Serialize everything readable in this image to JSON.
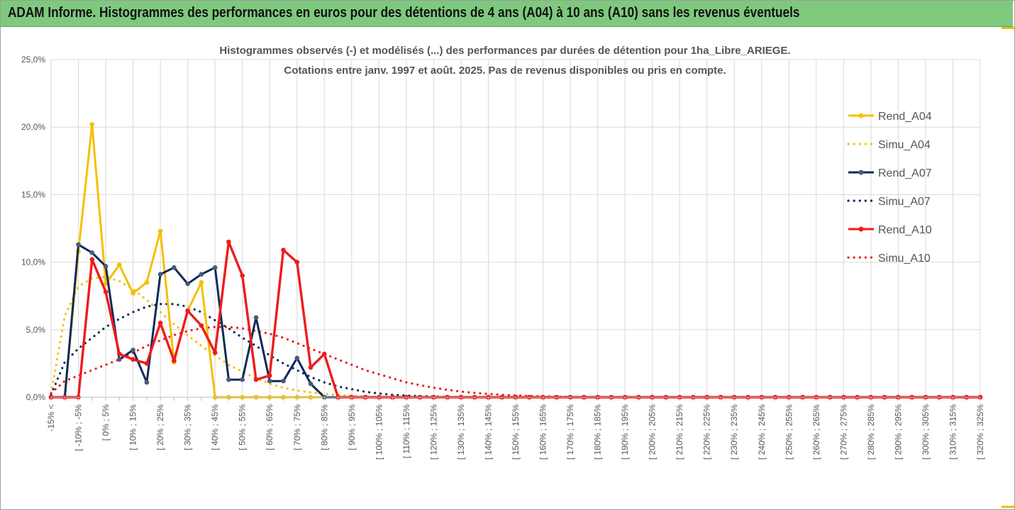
{
  "banner": {
    "title": "ADAM Informe. Histogrammes des performances en euros pour des détentions de 4 ans (A04) à 10 ans (A10) sans les revenus éventuels"
  },
  "colors": {
    "banner_bg": "#7fc97f",
    "A04": "#f5c000",
    "A07": "#0d2a5c",
    "A10": "#ee1c1c",
    "grid": "#d9d9d9"
  },
  "chart_data": {
    "type": "line",
    "title": "Histogrammes observés (-)  et modélisés (...) des performances par durées de détention pour 1ha_Libre_ARIEGE.",
    "subtitle": "Cotations entre janv. 1997 et août. 2025. Pas de revenus disponibles ou pris en compte.",
    "ylim": [
      0,
      25
    ],
    "yticks": [
      "0,0%",
      "5,0%",
      "10,0%",
      "15,0%",
      "20,0%",
      "25,0%"
    ],
    "grid": true,
    "legend_position": "right",
    "x_labels": [
      "-15% <",
      "[ -10% ; -5% ",
      "[ 0% ; 5% ",
      "[ 10% ; 15% ",
      "[ 20% ; 25% ",
      "[ 30% ; 35% ",
      "[ 40% ; 45% ",
      "[ 50% ; 55% ",
      "[ 60% ; 65% ",
      "[ 70% ; 75% ",
      "[ 80% ; 85% ",
      "[ 90% ; 95% ",
      "[ 100% ; 105% ",
      "[ 110% ; 115% ",
      "[ 120% ; 125% ",
      "[ 130% ; 135% ",
      "[ 140% ; 145% ",
      "[ 150% ; 155% ",
      "[ 160% ; 165% ",
      "[ 170% ; 175% ",
      "[ 180% ; 185% ",
      "[ 190% ; 195% ",
      "[ 200% ; 205% ",
      "[ 210% ; 215% ",
      "[ 220% ; 225% ",
      "[ 230% ; 235% ",
      "[ 240% ; 245% ",
      "[ 250% ; 255% ",
      "[ 260% ; 265% ",
      "[ 270% ; 275% ",
      "[ 280% ; 285% ",
      "[ 290% ; 295% ",
      "[ 300% ; 305% ",
      "[ 310% ; 315% ",
      "[ 320% ; 325% "
    ],
    "x_label_bin_index": [
      0,
      2,
      4,
      6,
      8,
      10,
      12,
      14,
      16,
      18,
      20,
      22,
      24,
      26,
      28,
      30,
      32,
      34,
      36,
      38,
      40,
      42,
      44,
      46,
      48,
      50,
      52,
      54,
      56,
      58,
      60,
      62,
      64,
      66,
      68
    ],
    "bin_count": 69,
    "series": [
      {
        "name": "Rend_A04",
        "style": "solid",
        "color": "#f5c000",
        "values": [
          0,
          0,
          10.8,
          20.2,
          8.4,
          9.8,
          7.7,
          8.5,
          12.3,
          2.6,
          6.4,
          8.5,
          0,
          0,
          0,
          0,
          0,
          0,
          0,
          0,
          0
        ]
      },
      {
        "name": "Simu_A04",
        "style": "dotted",
        "color": "#f5c000",
        "values": [
          0.3,
          6.0,
          8.2,
          8.8,
          8.9,
          8.6,
          8.0,
          7.2,
          6.3,
          5.4,
          4.6,
          3.8,
          3.1,
          2.4,
          1.9,
          1.4,
          1.0,
          0.7,
          0.5,
          0.35,
          0.25,
          0.17,
          0.1,
          0.05,
          0.02,
          0,
          0,
          0,
          0,
          0,
          0
        ]
      },
      {
        "name": "Rend_A07",
        "style": "solid",
        "color": "#0d2a5c",
        "values": [
          0,
          0,
          11.3,
          10.7,
          9.7,
          2.8,
          3.5,
          1.1,
          9.1,
          9.6,
          8.4,
          9.1,
          9.6,
          1.3,
          1.3,
          5.9,
          1.2,
          1.2,
          2.9,
          1.0,
          0
        ]
      },
      {
        "name": "Simu_A07",
        "style": "dotted",
        "color": "#0d2a5c",
        "values": [
          0.2,
          2.6,
          3.6,
          4.4,
          5.2,
          5.8,
          6.3,
          6.7,
          6.9,
          6.9,
          6.7,
          6.3,
          5.7,
          5.1,
          4.4,
          3.8,
          3.1,
          2.5,
          2.0,
          1.5,
          1.1,
          0.8,
          0.6,
          0.4,
          0.28,
          0.18,
          0.12,
          0.08,
          0.05,
          0.02,
          0,
          0,
          0,
          0
        ]
      },
      {
        "name": "Rend_A10",
        "style": "solid",
        "color": "#ee1c1c",
        "values": [
          0,
          0,
          0,
          10.2,
          7.8,
          3.2,
          2.8,
          2.5,
          5.5,
          2.7,
          6.4,
          5.3,
          3.3,
          11.5,
          9.0,
          1.3,
          1.6,
          10.9,
          10.0,
          2.2,
          3.2,
          0,
          0,
          0,
          0,
          0,
          0,
          0,
          0,
          0,
          0,
          0,
          0,
          0,
          0,
          0,
          0,
          0,
          0,
          0,
          0,
          0,
          0,
          0,
          0,
          0,
          0,
          0,
          0,
          0,
          0,
          0,
          0,
          0,
          0,
          0,
          0,
          0,
          0,
          0,
          0,
          0,
          0,
          0,
          0,
          0,
          0,
          0,
          0
        ]
      },
      {
        "name": "Simu_A10",
        "style": "dotted",
        "color": "#ee1c1c",
        "values": [
          0.3,
          1.2,
          1.6,
          2.0,
          2.4,
          2.8,
          3.3,
          3.8,
          4.2,
          4.6,
          4.9,
          5.1,
          5.2,
          5.2,
          5.1,
          4.9,
          4.7,
          4.4,
          4.0,
          3.6,
          3.2,
          2.8,
          2.4,
          2.0,
          1.7,
          1.4,
          1.1,
          0.9,
          0.7,
          0.55,
          0.42,
          0.32,
          0.24,
          0.18,
          0.13,
          0.09,
          0.06,
          0.04,
          0.02,
          0.01,
          0,
          0,
          0
        ]
      }
    ]
  }
}
